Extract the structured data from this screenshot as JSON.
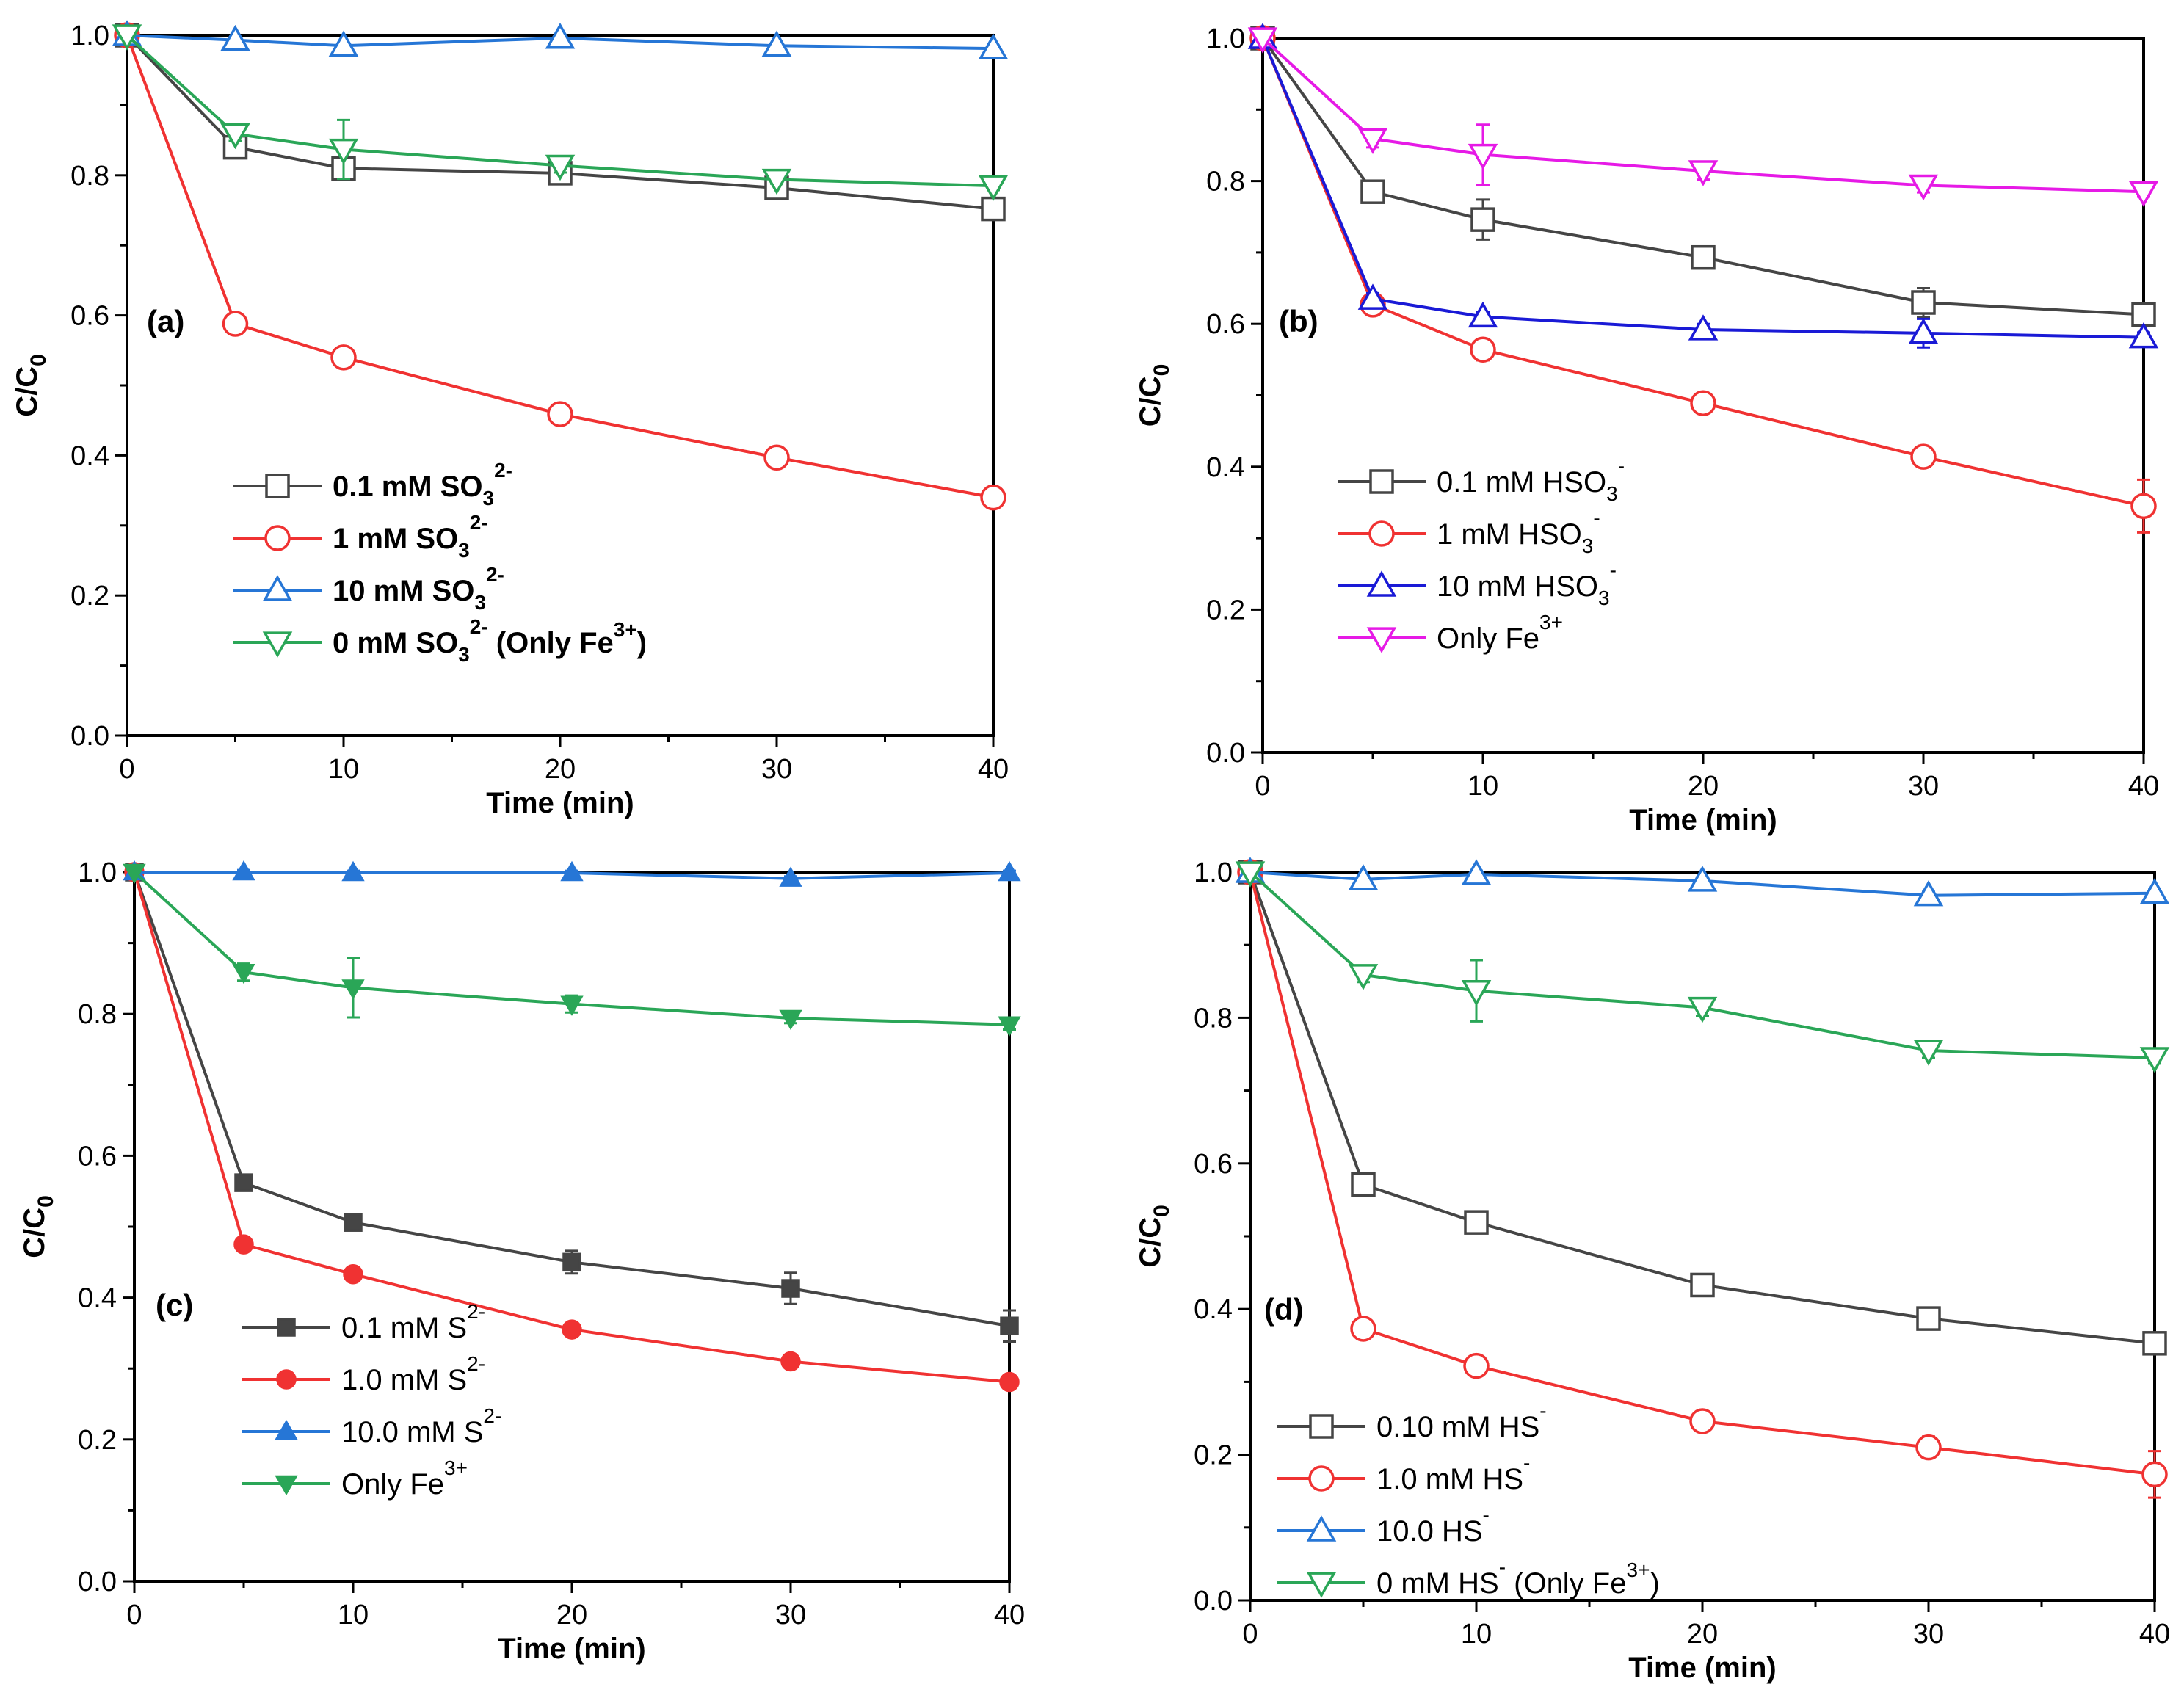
{
  "chart_data": [
    {
      "panel_label": "(a)",
      "type": "line",
      "xlabel": "Time (min)",
      "ylabel": "C/C0",
      "xlim": [
        0,
        40
      ],
      "ylim": [
        0.0,
        1.0
      ],
      "xticks": [
        0,
        10,
        20,
        30,
        40
      ],
      "yticks": [
        0.0,
        0.2,
        0.4,
        0.6,
        0.8,
        1.0
      ],
      "x": [
        0,
        5,
        10,
        20,
        30,
        40
      ],
      "legend_position": "center-left",
      "legend_bold": true,
      "series": [
        {
          "name": "0.1 mM SO3 2-",
          "label_main": "0.1 mM SO",
          "label_sub": "3",
          "label_sup": "2-",
          "label_tail": "",
          "color": "#454545",
          "marker": "square",
          "filled": false,
          "values": [
            1.0,
            0.84,
            0.81,
            0.803,
            0.782,
            0.752
          ],
          "errors": [
            0,
            0.008,
            0.012,
            0.01,
            0.006,
            0.006
          ]
        },
        {
          "name": "1 mM SO3 2-",
          "label_main": "1 mM SO",
          "label_sub": "3",
          "label_sup": "2-",
          "label_tail": "",
          "color": "#f03232",
          "marker": "circle",
          "filled": false,
          "values": [
            1.0,
            0.588,
            0.54,
            0.459,
            0.397,
            0.34
          ],
          "errors": [
            0,
            0.006,
            0.007,
            0.006,
            0.007,
            0.006
          ]
        },
        {
          "name": "10 mM SO3 2-",
          "label_main": "10 mM SO",
          "label_sub": "3",
          "label_sup": "2-",
          "label_tail": "",
          "color": "#2676d6",
          "marker": "triangle-up",
          "filled": false,
          "values": [
            1.0,
            0.993,
            0.985,
            0.996,
            0.985,
            0.981
          ],
          "errors": [
            0,
            0.004,
            0.004,
            0.004,
            0.004,
            0.004
          ]
        },
        {
          "name": "0 mM SO3 2- (Only Fe3+)",
          "label_main": "0 mM SO",
          "label_sub": "3",
          "label_sup": "2-",
          "label_tail": " (Only Fe",
          "label_sup2": "3+",
          "label_end": ")",
          "color": "#2aa657",
          "marker": "triangle-down",
          "filled": false,
          "values": [
            1.0,
            0.859,
            0.837,
            0.814,
            0.794,
            0.785
          ],
          "errors": [
            0,
            0.01,
            0.042,
            0.01,
            0.006,
            0.006
          ]
        }
      ]
    },
    {
      "panel_label": "(b)",
      "type": "line",
      "xlabel": "Time (min)",
      "ylabel": "C/C0",
      "xlim": [
        0,
        40
      ],
      "ylim": [
        0.0,
        1.0
      ],
      "xticks": [
        0,
        10,
        20,
        30,
        40
      ],
      "yticks": [
        0.0,
        0.2,
        0.4,
        0.6,
        0.8,
        1.0
      ],
      "x": [
        0,
        5,
        10,
        20,
        30,
        40
      ],
      "legend_position": "center-left",
      "legend_bold": false,
      "series": [
        {
          "name": "0.1 mM HSO3 -",
          "label_main": "0.1 mM HSO",
          "label_sub": "3",
          "label_sup": "-",
          "label_tail": "",
          "color": "#454545",
          "marker": "square",
          "filled": false,
          "values": [
            1.0,
            0.785,
            0.746,
            0.693,
            0.63,
            0.613
          ],
          "errors": [
            0,
            0.01,
            0.028,
            0.01,
            0.02,
            0.01
          ]
        },
        {
          "name": "1 mM HSO3 -",
          "label_main": "1 mM HSO",
          "label_sub": "3",
          "label_sup": "-",
          "label_tail": "",
          "color": "#f03232",
          "marker": "circle",
          "filled": false,
          "values": [
            1.0,
            0.627,
            0.564,
            0.489,
            0.414,
            0.345
          ],
          "errors": [
            0,
            0.012,
            0.015,
            0.013,
            0.01,
            0.037
          ]
        },
        {
          "name": "10 mM HSO3 -",
          "label_main": "10 mM HSO",
          "label_sub": "3",
          "label_sup": "-",
          "label_tail": "",
          "color": "#1a1ad6",
          "marker": "triangle-up",
          "filled": false,
          "values": [
            1.0,
            0.635,
            0.61,
            0.592,
            0.587,
            0.581
          ],
          "errors": [
            0,
            0.008,
            0.007,
            0.008,
            0.02,
            0.007
          ]
        },
        {
          "name": "Only Fe3+",
          "label_main": "Only Fe",
          "label_sub": "",
          "label_sup": "3+",
          "label_tail": "",
          "color": "#e61ae6",
          "marker": "triangle-down",
          "filled": false,
          "values": [
            1.0,
            0.859,
            0.837,
            0.814,
            0.794,
            0.785
          ],
          "errors": [
            0,
            0.012,
            0.042,
            0.012,
            0.01,
            0.007
          ]
        }
      ]
    },
    {
      "panel_label": "(c)",
      "type": "line",
      "xlabel": "Time (min)",
      "ylabel": "C/C0",
      "xlim": [
        0,
        40
      ],
      "ylim": [
        0.0,
        1.0
      ],
      "xticks": [
        0,
        10,
        20,
        30,
        40
      ],
      "yticks": [
        0.0,
        0.2,
        0.4,
        0.6,
        0.8,
        1.0
      ],
      "x": [
        0,
        5,
        10,
        20,
        30,
        40
      ],
      "legend_position": "bottom-left",
      "legend_bold": false,
      "series": [
        {
          "name": "0.1 mM S2-",
          "label_main": "0.1 mM S",
          "label_sub": "",
          "label_sup": "2-",
          "label_tail": "",
          "color": "#454545",
          "marker": "square",
          "filled": true,
          "values": [
            1.0,
            0.562,
            0.506,
            0.45,
            0.413,
            0.36
          ],
          "errors": [
            0,
            0.01,
            0.008,
            0.016,
            0.022,
            0.022
          ]
        },
        {
          "name": "1.0 mM S2-",
          "label_main": "1.0 mM S",
          "label_sub": "",
          "label_sup": "2-",
          "label_tail": "",
          "color": "#f03232",
          "marker": "circle",
          "filled": true,
          "values": [
            1.0,
            0.475,
            0.433,
            0.355,
            0.31,
            0.281
          ],
          "errors": [
            0,
            0.006,
            0.006,
            0.006,
            0.006,
            0.006
          ]
        },
        {
          "name": "10.0 mM S2-",
          "label_main": "10.0 mM S",
          "label_sub": "",
          "label_sup": "2-",
          "label_tail": "",
          "color": "#2676d6",
          "marker": "triangle-up",
          "filled": true,
          "values": [
            1.0,
            1.0,
            0.999,
            0.999,
            0.991,
            0.999
          ],
          "errors": [
            0,
            0.003,
            0.003,
            0.003,
            0.003,
            0.003
          ]
        },
        {
          "name": "Only Fe3+",
          "label_main": "Only Fe",
          "label_sub": "",
          "label_sup": "3+",
          "label_tail": "",
          "color": "#2aa657",
          "marker": "triangle-down",
          "filled": true,
          "values": [
            1.0,
            0.859,
            0.837,
            0.814,
            0.794,
            0.785
          ],
          "errors": [
            0,
            0.012,
            0.042,
            0.012,
            0.007,
            0.007
          ]
        }
      ]
    },
    {
      "panel_label": "(d)",
      "type": "line",
      "xlabel": "Time (min)",
      "ylabel": "C/C0",
      "xlim": [
        0,
        40
      ],
      "ylim": [
        0.0,
        1.0
      ],
      "xticks": [
        0,
        10,
        20,
        30,
        40
      ],
      "yticks": [
        0.0,
        0.2,
        0.4,
        0.6,
        0.8,
        1.0
      ],
      "x": [
        0,
        5,
        10,
        20,
        30,
        40
      ],
      "legend_position": "bottom-left",
      "legend_bold": false,
      "series": [
        {
          "name": "0.10 mM HS-",
          "label_main": "0.10 mM HS",
          "label_sub": "",
          "label_sup": "-",
          "label_tail": "",
          "color": "#454545",
          "marker": "square",
          "filled": false,
          "values": [
            1.0,
            0.571,
            0.519,
            0.433,
            0.387,
            0.353
          ],
          "errors": [
            0,
            0.01,
            0.01,
            0.01,
            0.01,
            0.01
          ]
        },
        {
          "name": "1.0 mM HS-",
          "label_main": "1.0 mM HS",
          "label_sub": "",
          "label_sup": "-",
          "label_tail": "",
          "color": "#f03232",
          "marker": "circle",
          "filled": false,
          "values": [
            1.0,
            0.373,
            0.322,
            0.246,
            0.21,
            0.173
          ],
          "errors": [
            0,
            0.008,
            0.008,
            0.01,
            0.015,
            0.032
          ]
        },
        {
          "name": "10.0 HS-",
          "label_main": "10.0 HS",
          "label_sub": "",
          "label_sup": "-",
          "label_tail": "",
          "color": "#2676d6",
          "marker": "triangle-up",
          "filled": false,
          "values": [
            1.0,
            0.99,
            0.997,
            0.988,
            0.968,
            0.971
          ],
          "errors": [
            0,
            0.005,
            0.005,
            0.005,
            0.005,
            0.005
          ]
        },
        {
          "name": "0 mM HS- (Only Fe3+)",
          "label_main": "0 mM HS",
          "label_sub": "",
          "label_sup": "-",
          "label_tail": " (Only Fe",
          "label_sup2": "3+",
          "label_end": ")",
          "color": "#2aa657",
          "marker": "triangle-down",
          "filled": false,
          "values": [
            1.0,
            0.859,
            0.837,
            0.814,
            0.755,
            0.745
          ],
          "errors": [
            0,
            0.01,
            0.042,
            0.012,
            0.01,
            0.008
          ]
        }
      ]
    }
  ]
}
